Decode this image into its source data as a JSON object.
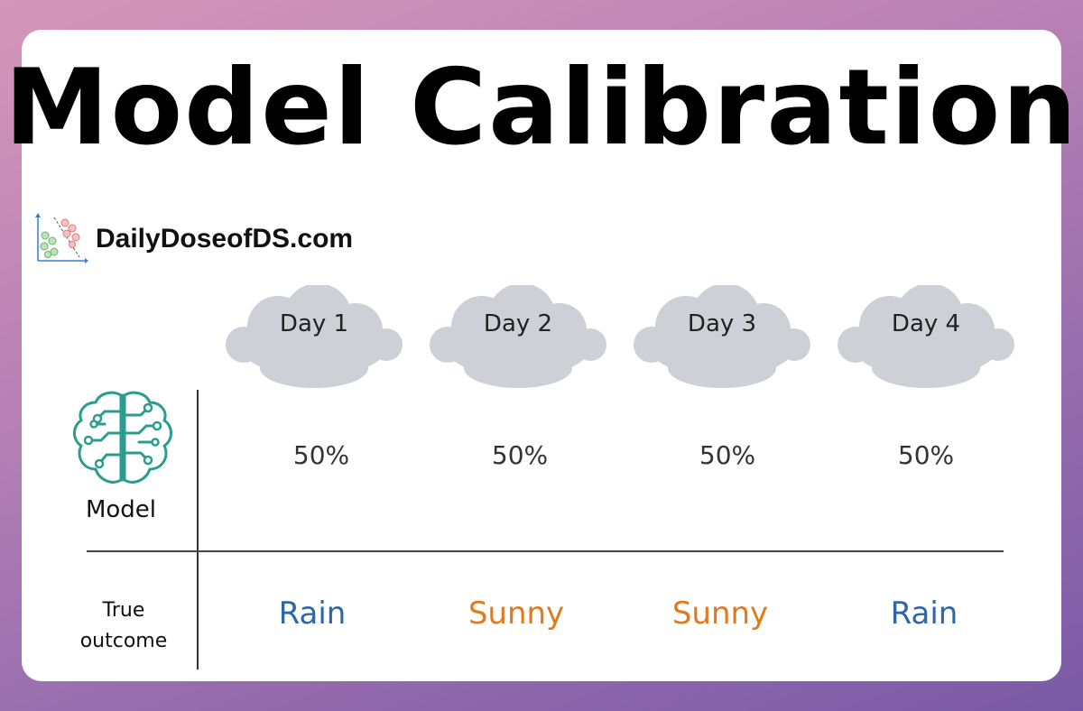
{
  "title": "Model Calibration",
  "brand": {
    "text": "DailyDoseofDS.com",
    "logo_icon": "scatter-plot-logo-icon"
  },
  "rows": {
    "model_label": "Model",
    "model_icon": "brain-circuit-icon",
    "true_label_line1": "True",
    "true_label_line2": "outcome"
  },
  "days": [
    {
      "label": "Day 1",
      "prediction": "50%",
      "outcome": "Rain",
      "outcome_color": "#2f66a8"
    },
    {
      "label": "Day 2",
      "prediction": "50%",
      "outcome": "Sunny",
      "outcome_color": "#e07a1f"
    },
    {
      "label": "Day 3",
      "prediction": "50%",
      "outcome": "Sunny",
      "outcome_color": "#e07a1f"
    },
    {
      "label": "Day 4",
      "prediction": "50%",
      "outcome": "Rain",
      "outcome_color": "#2f66a8"
    }
  ],
  "colors": {
    "cloud": "#cdd0d6",
    "brain": "#2a9d8f",
    "rain": "#2f66a8",
    "sunny": "#e07a1f"
  }
}
